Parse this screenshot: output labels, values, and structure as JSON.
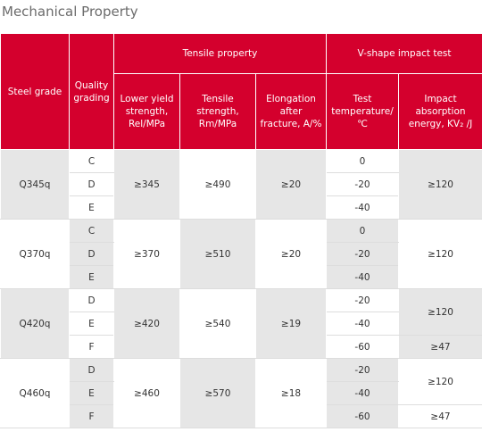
{
  "title": "Mechanical Property",
  "header": {
    "steel_grade": "Steel grade",
    "quality_grading": "Quality grading",
    "tensile_property": "Tensile property",
    "impact_test": "V-shape impact test",
    "lower_yield": "Lower yield strength, Rel/MPa",
    "tensile_strength": "Tensile strength, Rm/MPa",
    "elongation": "Elongation after fracture, A/%",
    "test_temperature": "Test temperature/℃",
    "impact_energy": "Impact absorption energy, KV₂ /J"
  },
  "groups": [
    {
      "grade": "Q345q",
      "qualities": [
        "C",
        "D",
        "E"
      ],
      "lower_yield": "≥345",
      "tensile_strength": "≥490",
      "elongation": "≥20",
      "temperatures": [
        "0",
        "-20",
        "-40"
      ],
      "impact_energy": [
        "≥120"
      ]
    },
    {
      "grade": "Q370q",
      "qualities": [
        "C",
        "D",
        "E"
      ],
      "lower_yield": "≥370",
      "tensile_strength": "≥510",
      "elongation": "≥20",
      "temperatures": [
        "0",
        "-20",
        "-40"
      ],
      "impact_energy": [
        "≥120"
      ]
    },
    {
      "grade": "Q420q",
      "qualities": [
        "D",
        "E",
        "F"
      ],
      "lower_yield": "≥420",
      "tensile_strength": "≥540",
      "elongation": "≥19",
      "temperatures": [
        "-20",
        "-40",
        "-60"
      ],
      "impact_energy": [
        "≥120",
        "≥47"
      ]
    },
    {
      "grade": "Q460q",
      "qualities": [
        "D",
        "E",
        "F"
      ],
      "lower_yield": "≥460",
      "tensile_strength": "≥570",
      "elongation": "≥18",
      "temperatures": [
        "-20",
        "-40",
        "-60"
      ],
      "impact_energy": [
        "≥120",
        "≥47"
      ]
    }
  ]
}
